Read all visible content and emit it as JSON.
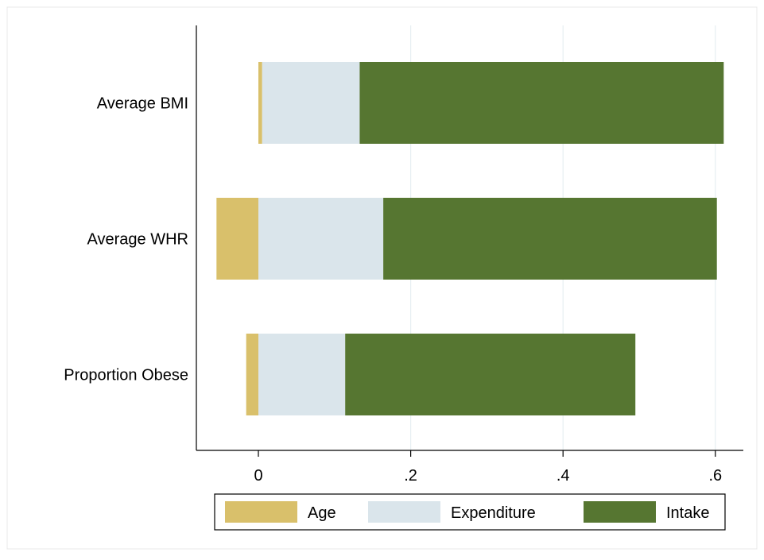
{
  "chart_data": {
    "type": "bar",
    "orientation": "horizontal",
    "stacked": true,
    "categories": [
      "Average BMI",
      "Average WHR",
      "Proportion Obese"
    ],
    "series": [
      {
        "name": "Age",
        "color": "#d9c06b",
        "segments": [
          [
            0.0,
            0.005
          ],
          [
            -0.055,
            0.0
          ],
          [
            -0.016,
            0.0
          ]
        ]
      },
      {
        "name": "Expenditure",
        "color": "#dae5eb",
        "segments": [
          [
            0.005,
            0.133
          ],
          [
            0.0,
            0.164
          ],
          [
            0.0,
            0.114
          ]
        ]
      },
      {
        "name": "Intake",
        "color": "#567631",
        "segments": [
          [
            0.133,
            0.611
          ],
          [
            0.164,
            0.602
          ],
          [
            0.114,
            0.495
          ]
        ]
      }
    ],
    "xticks": [
      {
        "value": 0,
        "label": "0"
      },
      {
        "value": 0.2,
        "label": ".2"
      },
      {
        "value": 0.4,
        "label": ".4"
      },
      {
        "value": 0.6,
        "label": ".6"
      }
    ],
    "xlim": [
      -0.08,
      0.64
    ],
    "grid": "vertical",
    "legend_position": "bottom",
    "title": "",
    "xlabel": "",
    "ylabel": ""
  }
}
